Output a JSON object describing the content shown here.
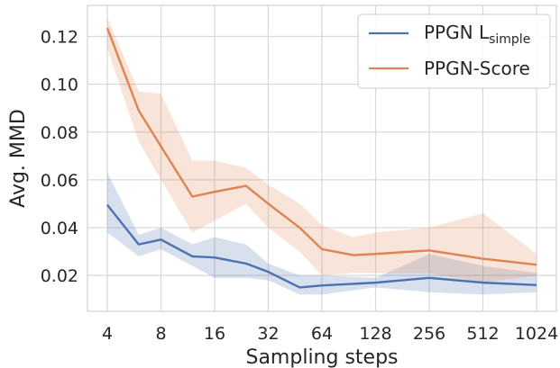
{
  "chart_data": {
    "type": "line",
    "xlabel": "Sampling steps",
    "ylabel": "Avg. MMD",
    "x_scale": "log2",
    "x": [
      4,
      6,
      8,
      12,
      16,
      24,
      32,
      64,
      96,
      128,
      256,
      512,
      1024
    ],
    "xticks": [
      4,
      8,
      16,
      32,
      64,
      128,
      256,
      512,
      1024
    ],
    "xticklabels": [
      "4",
      "8",
      "16",
      "32",
      "64",
      "128",
      "256",
      "512",
      "1024"
    ],
    "yticks": [
      0.02,
      0.04,
      0.06,
      0.08,
      0.1,
      0.12
    ],
    "yticklabels": [
      "0.02",
      "0.04",
      "0.06",
      "0.08",
      "0.10",
      "0.12"
    ],
    "ylim": [
      0.005,
      0.133
    ],
    "grid": true,
    "legend_position": "top-right",
    "series": [
      {
        "name": "PPGN L",
        "name_sub": "simple",
        "color": "#4c72b0",
        "x": [
          4,
          6,
          8,
          12,
          16,
          24,
          32,
          48,
          64,
          128,
          256,
          512,
          1024
        ],
        "values": [
          0.0495,
          0.033,
          0.035,
          0.028,
          0.0275,
          0.025,
          0.0215,
          0.015,
          0.0158,
          0.017,
          0.019,
          0.017,
          0.016
        ],
        "lower": [
          0.038,
          0.028,
          0.031,
          0.024,
          0.019,
          0.019,
          0.018,
          0.012,
          0.012,
          0.015,
          0.013,
          0.012,
          0.013
        ],
        "upper": [
          0.063,
          0.037,
          0.04,
          0.033,
          0.036,
          0.033,
          0.025,
          0.02,
          0.02,
          0.019,
          0.029,
          0.024,
          0.021
        ]
      },
      {
        "name": "PPGN-Score",
        "color": "#dd8452",
        "x": [
          4,
          6,
          8,
          12,
          16,
          24,
          32,
          48,
          64,
          96,
          128,
          256,
          512,
          1024
        ],
        "values": [
          0.1235,
          0.089,
          0.074,
          0.053,
          0.055,
          0.0575,
          0.05,
          0.04,
          0.031,
          0.0285,
          0.029,
          0.0305,
          0.027,
          0.0245
        ],
        "lower": [
          0.115,
          0.076,
          0.06,
          0.038,
          0.043,
          0.05,
          0.04,
          0.03,
          0.02,
          0.021,
          0.021,
          0.021,
          0.017,
          0.02
        ],
        "upper": [
          0.128,
          0.097,
          0.096,
          0.068,
          0.068,
          0.065,
          0.058,
          0.05,
          0.041,
          0.036,
          0.038,
          0.04,
          0.046,
          0.029
        ]
      }
    ]
  }
}
